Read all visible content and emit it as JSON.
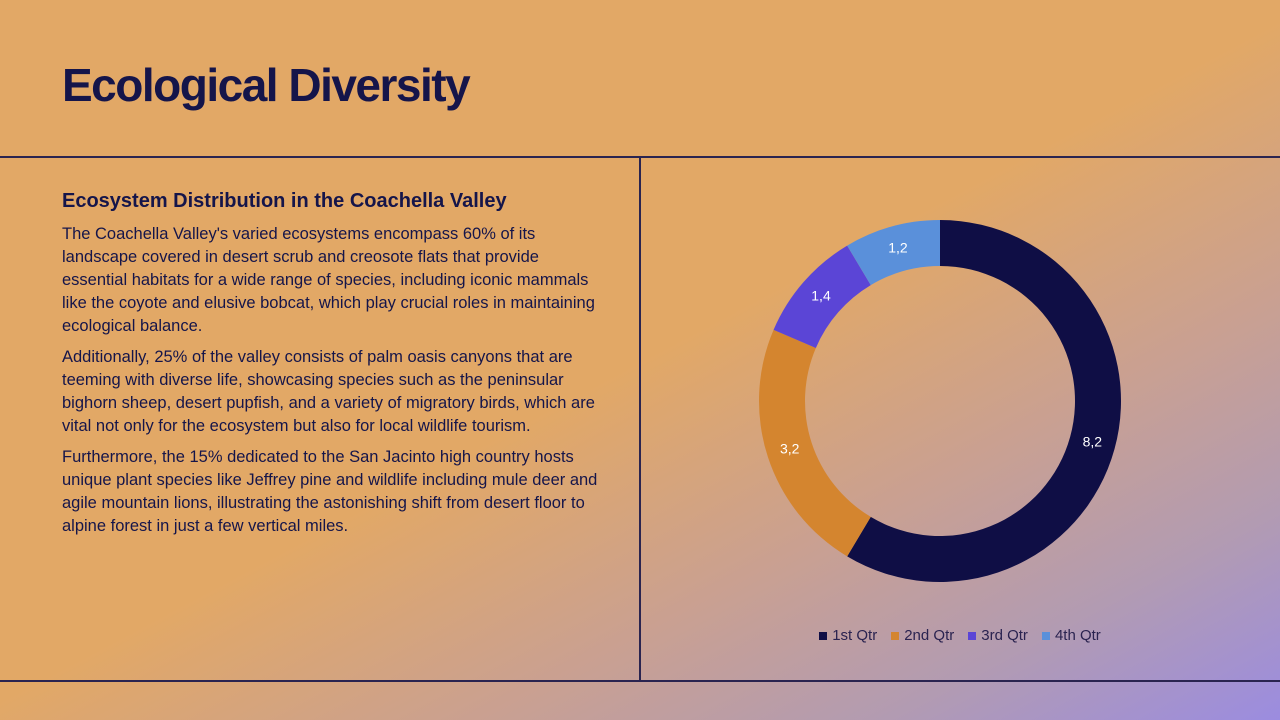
{
  "slide": {
    "title": "Ecological Diversity",
    "subtitle": "Ecosystem Distribution in the Coachella Valley",
    "paragraphs": [
      "The Coachella Valley's varied ecosystems encompass 60% of its landscape covered in desert scrub and creosote flats that provide essential habitats for a wide range of species, including iconic mammals like the coyote and elusive bobcat, which play crucial roles in maintaining ecological balance.",
      "Additionally, 25% of the valley consists of palm oasis canyons that are teeming with diverse life, showcasing species such as the peninsular bighorn sheep, desert pupfish, and a variety of migratory birds, which are vital not only for the ecosystem but also for local wildlife tourism.",
      "Furthermore, the 15% dedicated to the San Jacinto high country hosts unique plant species like Jeffrey pine and wildlife including mule deer and agile mountain lions, illustrating the astonishing shift from desert floor to alpine forest in just a few vertical miles."
    ]
  },
  "chart_data": {
    "type": "pie",
    "variant": "donut",
    "categories": [
      "1st Qtr",
      "2nd Qtr",
      "3rd Qtr",
      "4th Qtr"
    ],
    "values": [
      8.2,
      3.2,
      1.4,
      1.2
    ],
    "data_labels": [
      "8,2",
      "3,2",
      "1,4",
      "1,2"
    ],
    "colors": [
      "#0f0e45",
      "#d4852f",
      "#5b45d6",
      "#5a90da"
    ],
    "legend_position": "bottom",
    "title": ""
  }
}
